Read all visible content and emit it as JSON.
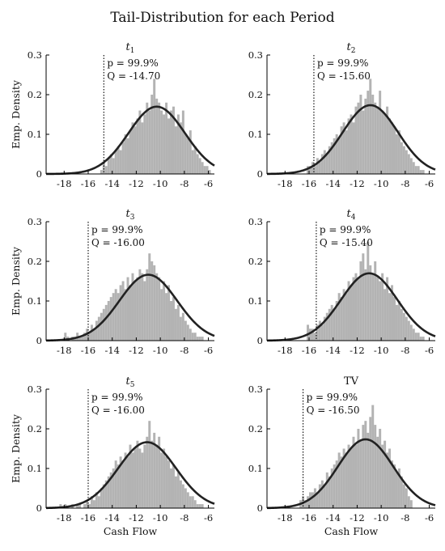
{
  "figure": {
    "title": "Tail-Distribution for each Period"
  },
  "chart_data": [
    {
      "type": "bar",
      "title": "t",
      "title_subscript": "1",
      "ylabel": "Emp. Density",
      "xlabel": "",
      "xlim": [
        -19.5,
        -5.5
      ],
      "ylim": [
        0,
        0.3
      ],
      "xticks": [
        -18,
        -16,
        -14,
        -12,
        -10,
        -8,
        -6
      ],
      "yticks": [
        0,
        0.1,
        0.2,
        0.3
      ],
      "p_label": "p = 99.9%",
      "q_label": "Q = -14.70",
      "quantile": -14.7,
      "fit": {
        "mean": -10.3,
        "sd": 2.35
      },
      "bin_width": 0.2,
      "bins_x": [
        -14.9,
        -14.7,
        -14.5,
        -14.3,
        -14.1,
        -13.9,
        -13.7,
        -13.5,
        -13.3,
        -13.1,
        -12.9,
        -12.7,
        -12.5,
        -12.3,
        -12.1,
        -11.9,
        -11.7,
        -11.5,
        -11.3,
        -11.1,
        -10.9,
        -10.7,
        -10.5,
        -10.3,
        -10.1,
        -9.9,
        -9.7,
        -9.5,
        -9.3,
        -9.1,
        -8.9,
        -8.7,
        -8.5,
        -8.3,
        -8.1,
        -7.9,
        -7.7,
        -7.5,
        -7.3,
        -7.1,
        -6.9,
        -6.7,
        -6.5,
        -6.3,
        -6.1,
        -5.9
      ],
      "values": [
        0.01,
        0.03,
        0.02,
        0.04,
        0.05,
        0.04,
        0.06,
        0.07,
        0.06,
        0.08,
        0.1,
        0.09,
        0.11,
        0.13,
        0.12,
        0.14,
        0.16,
        0.13,
        0.15,
        0.18,
        0.16,
        0.2,
        0.24,
        0.19,
        0.18,
        0.16,
        0.15,
        0.18,
        0.14,
        0.16,
        0.17,
        0.12,
        0.15,
        0.13,
        0.16,
        0.1,
        0.09,
        0.11,
        0.06,
        0.07,
        0.05,
        0.04,
        0.03,
        0.02,
        0.02,
        0.01
      ]
    },
    {
      "type": "bar",
      "title": "t",
      "title_subscript": "2",
      "ylabel": "",
      "xlabel": "",
      "xlim": [
        -19.5,
        -5.5
      ],
      "ylim": [
        0,
        0.3
      ],
      "xticks": [
        -18,
        -16,
        -14,
        -12,
        -10,
        -8,
        -6
      ],
      "yticks": [
        0,
        0.1,
        0.2,
        0.3
      ],
      "p_label": "p = 99.9%",
      "q_label": "Q = -15.60",
      "quantile": -15.6,
      "fit": {
        "mean": -10.9,
        "sd": 2.3
      },
      "bin_width": 0.2,
      "bins_x": [
        -16.1,
        -15.9,
        -15.7,
        -15.5,
        -15.3,
        -15.1,
        -14.9,
        -14.7,
        -14.5,
        -14.3,
        -14.1,
        -13.9,
        -13.7,
        -13.5,
        -13.3,
        -13.1,
        -12.9,
        -12.7,
        -12.5,
        -12.3,
        -12.1,
        -11.9,
        -11.7,
        -11.5,
        -11.3,
        -11.1,
        -10.9,
        -10.7,
        -10.5,
        -10.3,
        -10.1,
        -9.9,
        -9.7,
        -9.5,
        -9.3,
        -9.1,
        -8.9,
        -8.7,
        -8.5,
        -8.3,
        -8.1,
        -7.9,
        -7.7,
        -7.5,
        -7.3,
        -7.1,
        -6.9,
        -6.7,
        -6.5
      ],
      "values": [
        0.02,
        0.02,
        0.03,
        0.02,
        0.04,
        0.03,
        0.05,
        0.06,
        0.05,
        0.07,
        0.08,
        0.09,
        0.1,
        0.09,
        0.12,
        0.13,
        0.11,
        0.14,
        0.15,
        0.13,
        0.17,
        0.18,
        0.2,
        0.16,
        0.19,
        0.21,
        0.24,
        0.2,
        0.18,
        0.17,
        0.21,
        0.16,
        0.15,
        0.17,
        0.14,
        0.13,
        0.12,
        0.1,
        0.11,
        0.08,
        0.07,
        0.06,
        0.05,
        0.04,
        0.03,
        0.02,
        0.02,
        0.01,
        0.01
      ]
    },
    {
      "type": "bar",
      "title": "t",
      "title_subscript": "3",
      "ylabel": "Emp. Density",
      "xlabel": "",
      "xlim": [
        -19.5,
        -5.5
      ],
      "ylim": [
        0,
        0.3
      ],
      "xticks": [
        -18,
        -16,
        -14,
        -12,
        -10,
        -8,
        -6
      ],
      "yticks": [
        0,
        0.1,
        0.2,
        0.3
      ],
      "p_label": "p = 99.9%",
      "q_label": "Q = -16.00",
      "quantile": -16.0,
      "fit": {
        "mean": -11.0,
        "sd": 2.4
      },
      "bin_width": 0.2,
      "bins_x": [
        -17.9,
        -17.7,
        -17.5,
        -17.3,
        -17.1,
        -16.9,
        -16.7,
        -16.5,
        -16.3,
        -16.1,
        -15.9,
        -15.7,
        -15.5,
        -15.3,
        -15.1,
        -14.9,
        -14.7,
        -14.5,
        -14.3,
        -14.1,
        -13.9,
        -13.7,
        -13.5,
        -13.3,
        -13.1,
        -12.9,
        -12.7,
        -12.5,
        -12.3,
        -12.1,
        -11.9,
        -11.7,
        -11.5,
        -11.3,
        -11.1,
        -10.9,
        -10.7,
        -10.5,
        -10.3,
        -10.1,
        -9.9,
        -9.7,
        -9.5,
        -9.3,
        -9.1,
        -8.9,
        -8.7,
        -8.5,
        -8.3,
        -8.1,
        -7.9,
        -7.7,
        -7.5,
        -7.3,
        -7.1,
        -6.9,
        -6.7,
        -6.5
      ],
      "values": [
        0.02,
        0.01,
        0.0,
        0.01,
        0.01,
        0.02,
        0.01,
        0.01,
        0.02,
        0.03,
        0.02,
        0.04,
        0.03,
        0.05,
        0.06,
        0.07,
        0.08,
        0.09,
        0.1,
        0.11,
        0.12,
        0.13,
        0.12,
        0.14,
        0.15,
        0.13,
        0.16,
        0.14,
        0.17,
        0.15,
        0.16,
        0.18,
        0.17,
        0.15,
        0.18,
        0.22,
        0.2,
        0.19,
        0.17,
        0.16,
        0.13,
        0.15,
        0.12,
        0.14,
        0.1,
        0.11,
        0.08,
        0.09,
        0.06,
        0.07,
        0.05,
        0.04,
        0.03,
        0.02,
        0.02,
        0.01,
        0.01,
        0.01
      ]
    },
    {
      "type": "bar",
      "title": "t",
      "title_subscript": "4",
      "ylabel": "",
      "xlabel": "",
      "xlim": [
        -19.5,
        -5.5
      ],
      "ylim": [
        0,
        0.3
      ],
      "xticks": [
        -18,
        -16,
        -14,
        -12,
        -10,
        -8,
        -6
      ],
      "yticks": [
        0,
        0.1,
        0.2,
        0.3
      ],
      "p_label": "p = 99.9%",
      "q_label": "Q = -15.40",
      "quantile": -15.4,
      "fit": {
        "mean": -11.0,
        "sd": 2.35
      },
      "bin_width": 0.2,
      "bins_x": [
        -16.1,
        -15.9,
        -15.7,
        -15.5,
        -15.3,
        -15.1,
        -14.9,
        -14.7,
        -14.5,
        -14.3,
        -14.1,
        -13.9,
        -13.7,
        -13.5,
        -13.3,
        -13.1,
        -12.9,
        -12.7,
        -12.5,
        -12.3,
        -12.1,
        -11.9,
        -11.7,
        -11.5,
        -11.3,
        -11.1,
        -10.9,
        -10.7,
        -10.5,
        -10.3,
        -10.1,
        -9.9,
        -9.7,
        -9.5,
        -9.3,
        -9.1,
        -8.9,
        -8.7,
        -8.5,
        -8.3,
        -8.1,
        -7.9,
        -7.7,
        -7.5,
        -7.3,
        -7.1,
        -6.9,
        -6.7,
        -6.5
      ],
      "values": [
        0.04,
        0.03,
        0.03,
        0.02,
        0.04,
        0.05,
        0.04,
        0.06,
        0.07,
        0.08,
        0.09,
        0.08,
        0.1,
        0.12,
        0.11,
        0.13,
        0.12,
        0.15,
        0.14,
        0.16,
        0.17,
        0.16,
        0.2,
        0.22,
        0.18,
        0.25,
        0.19,
        0.17,
        0.2,
        0.16,
        0.15,
        0.17,
        0.13,
        0.16,
        0.12,
        0.14,
        0.11,
        0.09,
        0.1,
        0.08,
        0.07,
        0.06,
        0.05,
        0.04,
        0.03,
        0.02,
        0.02,
        0.01,
        0.01
      ]
    },
    {
      "type": "bar",
      "title": "t",
      "title_subscript": "5",
      "ylabel": "Emp. Density",
      "xlabel": "Cash Flow",
      "xlim": [
        -19.5,
        -5.5
      ],
      "ylim": [
        0,
        0.3
      ],
      "xticks": [
        -18,
        -16,
        -14,
        -12,
        -10,
        -8,
        -6
      ],
      "yticks": [
        0,
        0.1,
        0.2,
        0.3
      ],
      "p_label": "p = 99.9%",
      "q_label": "Q = -16.00",
      "quantile": -16.0,
      "fit": {
        "mean": -11.1,
        "sd": 2.4
      },
      "bin_width": 0.2,
      "bins_x": [
        -18.3,
        -18.1,
        -17.9,
        -17.7,
        -17.5,
        -17.3,
        -17.1,
        -16.9,
        -16.7,
        -16.5,
        -16.3,
        -16.1,
        -15.9,
        -15.7,
        -15.5,
        -15.3,
        -15.1,
        -14.9,
        -14.7,
        -14.5,
        -14.3,
        -14.1,
        -13.9,
        -13.7,
        -13.5,
        -13.3,
        -13.1,
        -12.9,
        -12.7,
        -12.5,
        -12.3,
        -12.1,
        -11.9,
        -11.7,
        -11.5,
        -11.3,
        -11.1,
        -10.9,
        -10.7,
        -10.5,
        -10.3,
        -10.1,
        -9.9,
        -9.7,
        -9.5,
        -9.3,
        -9.1,
        -8.9,
        -8.7,
        -8.5,
        -8.3,
        -8.1,
        -7.9,
        -7.7,
        -7.5,
        -7.3,
        -7.1,
        -6.9,
        -6.7,
        -6.5
      ],
      "values": [
        0.01,
        0.0,
        0.01,
        0.0,
        0.0,
        0.01,
        0.0,
        0.01,
        0.01,
        0.0,
        0.01,
        0.02,
        0.01,
        0.03,
        0.02,
        0.04,
        0.03,
        0.05,
        0.06,
        0.07,
        0.08,
        0.09,
        0.1,
        0.12,
        0.11,
        0.13,
        0.12,
        0.14,
        0.13,
        0.16,
        0.14,
        0.15,
        0.17,
        0.15,
        0.14,
        0.16,
        0.18,
        0.22,
        0.17,
        0.19,
        0.16,
        0.18,
        0.14,
        0.15,
        0.13,
        0.12,
        0.1,
        0.11,
        0.08,
        0.09,
        0.07,
        0.06,
        0.05,
        0.04,
        0.03,
        0.03,
        0.02,
        0.01,
        0.01,
        0.01
      ]
    },
    {
      "type": "bar",
      "title": "TV",
      "title_subscript": "",
      "ylabel": "",
      "xlabel": "Cash Flow",
      "xlim": [
        -19.5,
        -5.5
      ],
      "ylim": [
        0,
        0.3
      ],
      "xticks": [
        -18,
        -16,
        -14,
        -12,
        -10,
        -8,
        -6
      ],
      "yticks": [
        0,
        0.1,
        0.2,
        0.3
      ],
      "p_label": "p = 99.9%",
      "q_label": "Q = -16.50",
      "quantile": -16.5,
      "fit": {
        "mean": -11.3,
        "sd": 2.3
      },
      "bin_width": 0.2,
      "bins_x": [
        -16.7,
        -16.5,
        -16.3,
        -16.1,
        -15.9,
        -15.7,
        -15.5,
        -15.3,
        -15.1,
        -14.9,
        -14.7,
        -14.5,
        -14.3,
        -14.1,
        -13.9,
        -13.7,
        -13.5,
        -13.3,
        -13.1,
        -12.9,
        -12.7,
        -12.5,
        -12.3,
        -12.1,
        -11.9,
        -11.7,
        -11.5,
        -11.3,
        -11.1,
        -10.9,
        -10.7,
        -10.5,
        -10.3,
        -10.1,
        -9.9,
        -9.7,
        -9.5,
        -9.3,
        -9.1,
        -8.9,
        -8.7,
        -8.5,
        -8.3,
        -8.1,
        -7.9,
        -7.7,
        -7.5
      ],
      "values": [
        0.02,
        0.03,
        0.02,
        0.03,
        0.04,
        0.04,
        0.05,
        0.04,
        0.06,
        0.07,
        0.06,
        0.09,
        0.08,
        0.1,
        0.11,
        0.12,
        0.14,
        0.13,
        0.15,
        0.14,
        0.16,
        0.15,
        0.18,
        0.16,
        0.2,
        0.17,
        0.21,
        0.22,
        0.19,
        0.23,
        0.26,
        0.21,
        0.18,
        0.2,
        0.16,
        0.17,
        0.14,
        0.15,
        0.12,
        0.11,
        0.09,
        0.1,
        0.08,
        0.06,
        0.05,
        0.03,
        0.02
      ]
    }
  ]
}
